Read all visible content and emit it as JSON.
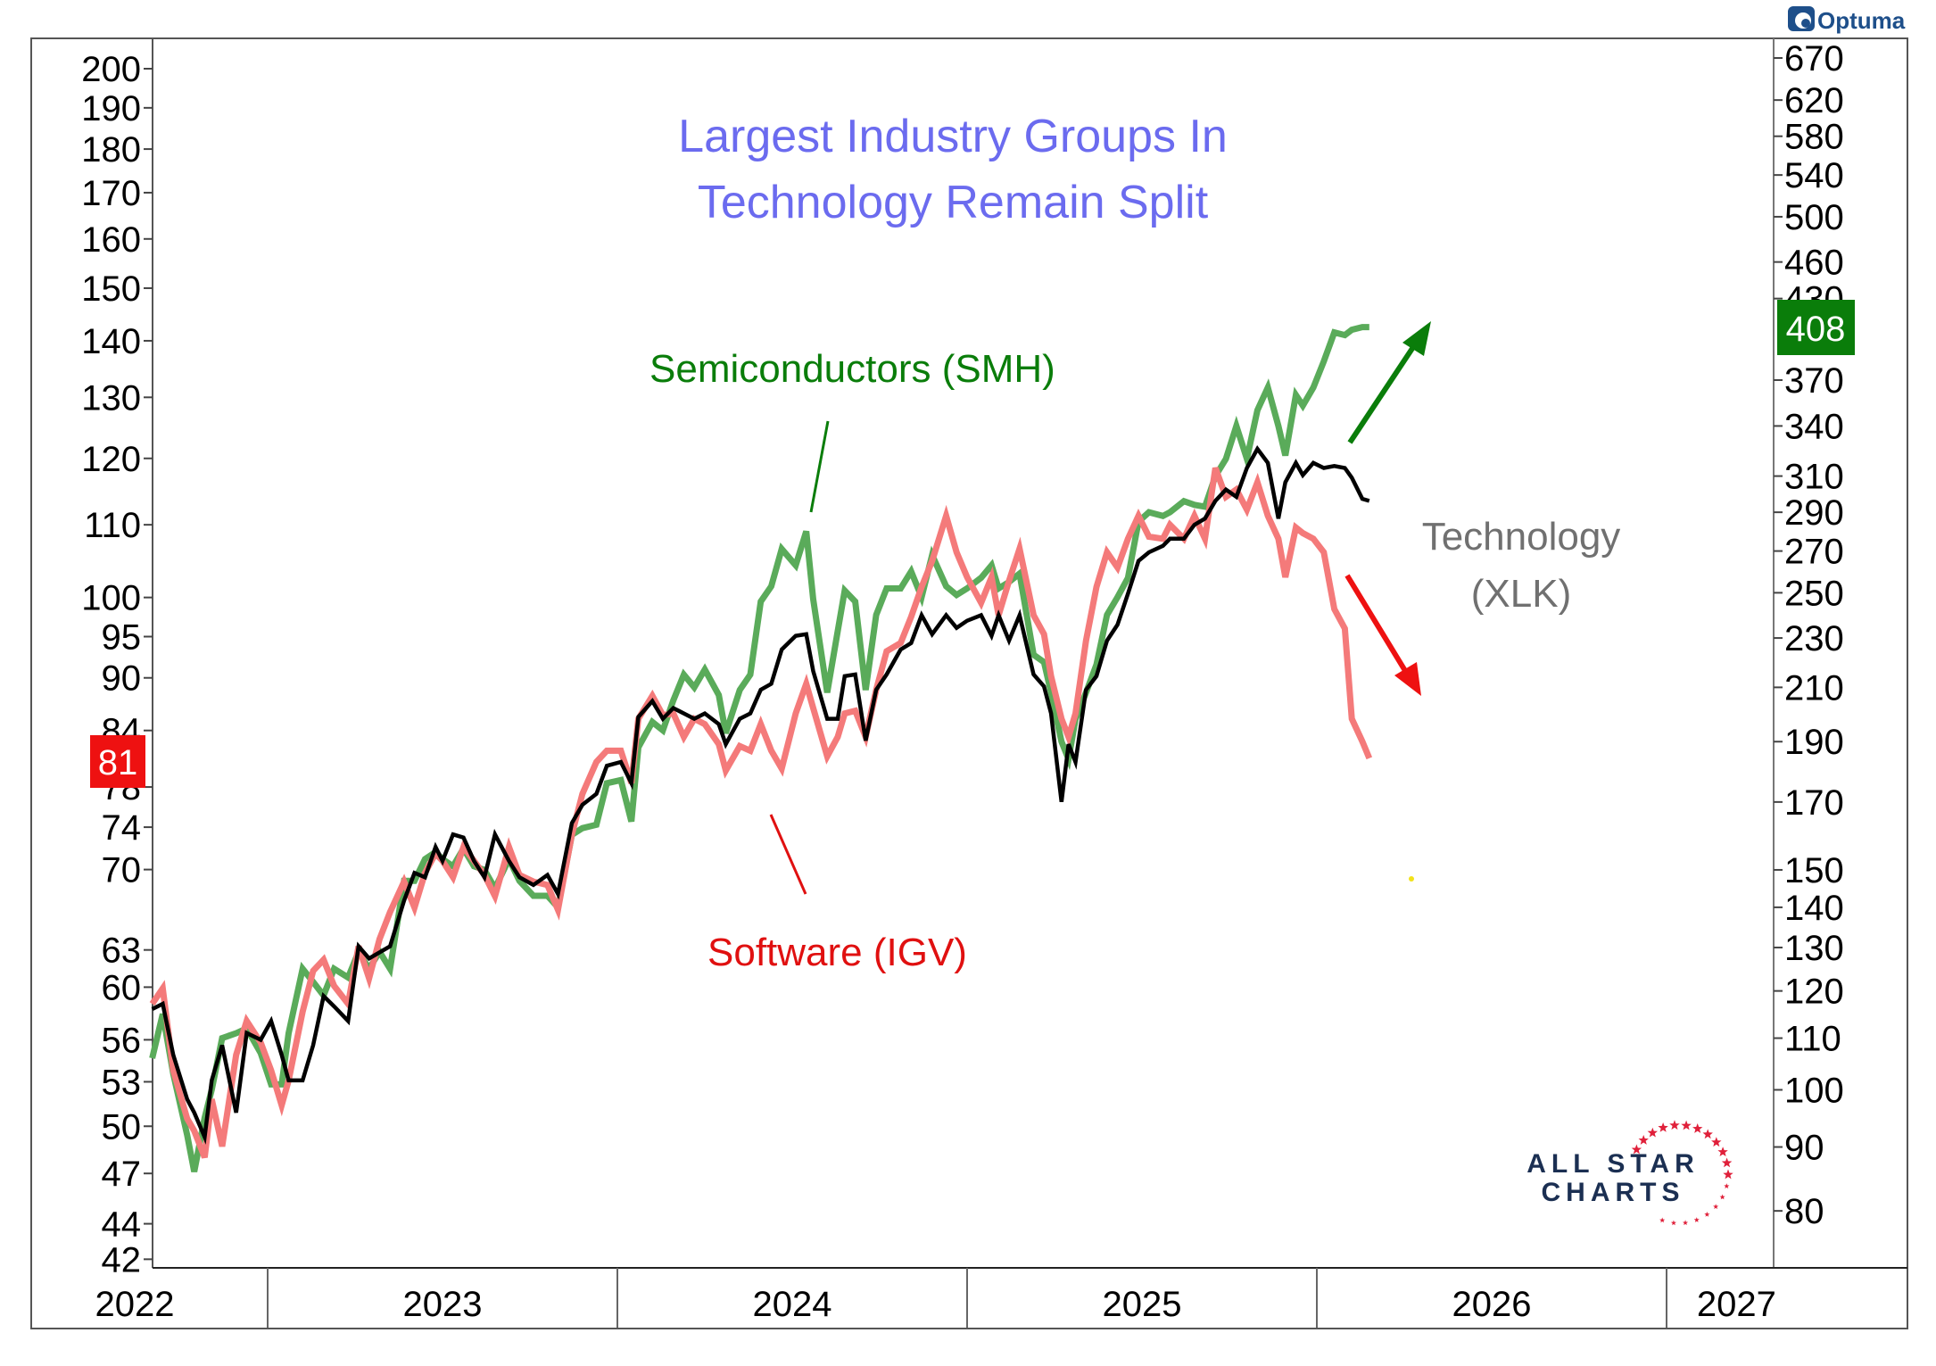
{
  "branding": {
    "platform_logo": "Optuma",
    "watermark_line1": "ALL STAR",
    "watermark_line2": "CHARTS"
  },
  "chart_data": {
    "type": "line",
    "title": "Largest Industry Groups In Technology Remain Split",
    "title_lines": [
      "Largest Industry Groups In",
      "Technology Remain Split"
    ],
    "xlabel": "",
    "ylabel": "",
    "y_scale": "log",
    "grid": false,
    "x_axis": {
      "units": "year",
      "range": [
        2022.55,
        2027.35
      ],
      "tick_labels": [
        "2022",
        "2023",
        "2024",
        "2025",
        "2026",
        "2027"
      ],
      "boundaries": [
        2023,
        2024,
        2025,
        2026,
        2027
      ]
    },
    "y_axis_left": {
      "series": "Software (IGV)",
      "range": [
        41.5,
        205
      ],
      "ticks": [
        200,
        190,
        180,
        170,
        160,
        150,
        140,
        130,
        120,
        110,
        100,
        95,
        90,
        84,
        78,
        74,
        70,
        63,
        60,
        56,
        53,
        50,
        47,
        44,
        42
      ],
      "last_value_label": "81",
      "last_value_color": "#ee1111"
    },
    "y_axis_right": {
      "series": "Semiconductors (SMH)",
      "range": [
        73,
        690
      ],
      "ticks": [
        670,
        620,
        580,
        540,
        500,
        460,
        430,
        370,
        340,
        310,
        290,
        270,
        250,
        230,
        210,
        190,
        170,
        150,
        140,
        130,
        120,
        110,
        100,
        90,
        80
      ],
      "last_value_label": "408",
      "last_value_color": "#0a7d0a"
    },
    "x": [
      2022.67,
      2022.7,
      2022.73,
      2022.77,
      2022.79,
      2022.82,
      2022.84,
      2022.87,
      2022.91,
      2022.94,
      2022.98,
      2023.01,
      2023.04,
      2023.06,
      2023.1,
      2023.13,
      2023.16,
      2023.19,
      2023.23,
      2023.26,
      2023.29,
      2023.32,
      2023.35,
      2023.39,
      2023.42,
      2023.45,
      2023.48,
      2023.5,
      2023.53,
      2023.56,
      2023.59,
      2023.62,
      2023.65,
      2023.69,
      2023.72,
      2023.76,
      2023.8,
      2023.83,
      2023.87,
      2023.9,
      2023.94,
      2023.97,
      2024.01,
      2024.04,
      2024.06,
      2024.1,
      2024.13,
      2024.16,
      2024.19,
      2024.22,
      2024.25,
      2024.29,
      2024.31,
      2024.35,
      2024.38,
      2024.41,
      2024.44,
      2024.47,
      2024.51,
      2024.54,
      2024.56,
      2024.6,
      2024.63,
      2024.65,
      2024.68,
      2024.71,
      2024.74,
      2024.77,
      2024.81,
      2024.84,
      2024.87,
      2024.9,
      2024.94,
      2024.97,
      2025.0,
      2025.04,
      2025.07,
      2025.09,
      2025.12,
      2025.15,
      2025.19,
      2025.22,
      2025.24,
      2025.27,
      2025.29,
      2025.31,
      2025.34,
      2025.37,
      2025.4,
      2025.43,
      2025.46,
      2025.49,
      2025.52,
      2025.56,
      2025.58,
      2025.62,
      2025.65,
      2025.68,
      2025.71,
      2025.74,
      2025.77,
      2025.8,
      2025.83,
      2025.86,
      2025.89,
      2025.91,
      2025.94,
      2025.96,
      2025.99,
      2026.02,
      2026.05,
      2026.08,
      2026.1,
      2026.13,
      2026.15
    ],
    "series": [
      {
        "name": "Semiconductors (SMH)",
        "axis": "right",
        "color": "#5aab5a",
        "values": [
          106,
          115,
          103,
          92,
          86,
          95,
          100,
          110,
          111,
          112,
          107,
          101,
          101,
          111,
          125,
          122,
          119,
          125,
          123,
          129,
          125,
          129,
          125,
          147,
          147,
          153,
          155,
          153,
          151,
          156,
          151,
          150,
          145,
          153,
          147,
          143,
          143,
          140,
          160,
          162,
          163,
          176,
          177,
          164,
          188,
          197,
          194,
          205,
          215,
          210,
          217,
          207,
          193,
          209,
          215,
          246,
          253,
          271,
          263,
          280,
          247,
          208,
          233,
          251,
          246,
          209,
          240,
          252,
          252,
          260,
          248,
          268,
          253,
          249,
          252,
          257,
          263,
          252,
          255,
          259,
          223,
          220,
          208,
          190,
          184,
          198,
          208,
          219,
          240,
          248,
          257,
          285,
          290,
          288,
          290,
          296,
          294,
          293,
          310,
          320,
          340,
          320,
          350,
          365,
          340,
          322,
          360,
          353,
          365,
          383,
          404,
          402,
          406,
          408,
          408
        ]
      },
      {
        "name": "Software (IGV)",
        "axis": "left",
        "color": "#f47a7a",
        "values": [
          58.7,
          59.9,
          53.8,
          50.5,
          49.7,
          48.0,
          51.8,
          48.7,
          54.9,
          57.4,
          55.8,
          53.8,
          51.4,
          53.1,
          58.1,
          61.3,
          62.2,
          60.1,
          58.7,
          63.3,
          60.7,
          63.9,
          66.2,
          68.9,
          66.6,
          69.7,
          71.5,
          70.8,
          69.3,
          72.1,
          70.8,
          69.5,
          67.6,
          72.1,
          69.5,
          68.9,
          68.6,
          66.4,
          73.3,
          77.3,
          80.6,
          81.8,
          81.8,
          78.4,
          85.3,
          87.9,
          85.7,
          85.9,
          83.3,
          85.3,
          84.7,
          82.5,
          79.7,
          82.3,
          81.8,
          84.7,
          81.8,
          79.9,
          85.9,
          89.3,
          86.5,
          81.2,
          83.3,
          85.9,
          86.2,
          83.3,
          88.6,
          93.2,
          94.2,
          97.5,
          101.4,
          104.9,
          111.3,
          106.1,
          102.7,
          99.3,
          102.7,
          97.7,
          102.2,
          106.6,
          97.7,
          95.3,
          90.2,
          85.3,
          83.3,
          85.9,
          94.5,
          101.4,
          106.1,
          104.0,
          108.0,
          111.3,
          108.3,
          108.0,
          110.0,
          108.0,
          111.3,
          108.0,
          118.5,
          114.1,
          115.2,
          112.2,
          116.3,
          111.3,
          108.0,
          102.7,
          109.6,
          108.8,
          108.0,
          106.1,
          98.5,
          96.0,
          85.3,
          82.8,
          81.0
        ]
      },
      {
        "name": "Technology (XLK)",
        "axis": "overlay (left-axis units)",
        "color": "#000000",
        "values": [
          58.3,
          58.7,
          54.9,
          51.8,
          50.9,
          49.3,
          53.1,
          55.6,
          50.9,
          56.5,
          56.0,
          57.4,
          54.9,
          53.1,
          53.1,
          55.6,
          59.3,
          58.5,
          57.4,
          63.3,
          62.3,
          62.8,
          63.3,
          67.2,
          69.7,
          69.3,
          72.1,
          70.8,
          73.3,
          73.0,
          70.8,
          69.3,
          73.3,
          70.8,
          69.3,
          68.6,
          69.5,
          67.8,
          74.4,
          76.2,
          77.3,
          80.2,
          80.6,
          78.4,
          85.5,
          87.3,
          85.3,
          86.5,
          85.9,
          85.3,
          85.9,
          84.7,
          82.5,
          85.3,
          85.9,
          88.6,
          89.3,
          93.4,
          95.1,
          95.3,
          90.8,
          85.3,
          85.3,
          90.2,
          90.4,
          82.9,
          88.6,
          90.4,
          93.4,
          94.2,
          97.7,
          95.3,
          97.7,
          96.1,
          97.0,
          97.7,
          95.1,
          97.7,
          94.5,
          97.7,
          90.4,
          89.0,
          85.9,
          76.5,
          82.5,
          80.6,
          88.6,
          90.2,
          94.5,
          96.5,
          100.5,
          104.9,
          106.1,
          107.0,
          108.0,
          108.0,
          110.0,
          110.9,
          113.5,
          115.2,
          114.1,
          118.5,
          121.5,
          119.3,
          110.9,
          116.3,
          119.3,
          117.4,
          119.3,
          118.5,
          118.8,
          118.5,
          117.0,
          113.8,
          113.5
        ]
      }
    ],
    "annotations": [
      {
        "text": "Semiconductors (SMH)",
        "color": "#0a7d0a",
        "pointer": "line to SMH 2024 peak"
      },
      {
        "text": "Software (IGV)",
        "color": "#e01010",
        "pointer": "line to IGV 2024 low"
      },
      {
        "text_lines": [
          "Technology",
          "(XLK)"
        ],
        "color": "#707070"
      },
      {
        "type": "arrow",
        "direction": "up-right",
        "color": "#0a7d0a"
      },
      {
        "type": "arrow",
        "direction": "down-right",
        "color": "#ee1111"
      }
    ],
    "legend": "none"
  }
}
